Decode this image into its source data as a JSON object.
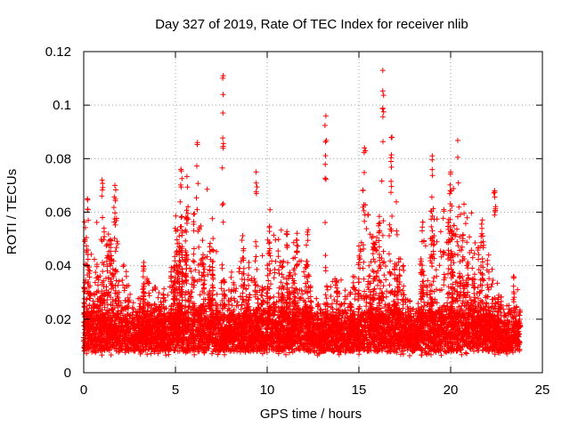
{
  "chart_data": {
    "type": "scatter",
    "title": "Day 327 of 2019, Rate Of TEC Index for receiver nlib",
    "xlabel": "GPS time / hours",
    "ylabel": "ROTI / TECUs",
    "xlim": [
      0,
      25
    ],
    "ylim": [
      0,
      0.12
    ],
    "xticks": [
      0,
      5,
      10,
      15,
      20,
      25
    ],
    "yticks": [
      0,
      0.02,
      0.04,
      0.06,
      0.08,
      0.1,
      0.12
    ],
    "xtick_labels": [
      "0",
      "5",
      "10",
      "15",
      "20",
      "25"
    ],
    "ytick_labels": [
      "0",
      "0.02",
      "0.04",
      "0.06",
      "0.08",
      "0.1",
      "0.12"
    ],
    "grid": true,
    "marker": "+",
    "color": "#ff0000",
    "series": [
      {
        "name": "ROTI",
        "note": "Dense scatter of ROTI values from 0 to ~23.8 h; bulk between 0.005 and 0.03 TECU/min with spikes",
        "peaks": [
          {
            "x": 0.2,
            "y": 0.065
          },
          {
            "x": 1.0,
            "y": 0.072
          },
          {
            "x": 1.7,
            "y": 0.07
          },
          {
            "x": 5.3,
            "y": 0.076
          },
          {
            "x": 6.2,
            "y": 0.086
          },
          {
            "x": 7.6,
            "y": 0.111
          },
          {
            "x": 9.4,
            "y": 0.075
          },
          {
            "x": 13.2,
            "y": 0.096
          },
          {
            "x": 15.3,
            "y": 0.084
          },
          {
            "x": 16.3,
            "y": 0.113
          },
          {
            "x": 16.8,
            "y": 0.088
          },
          {
            "x": 19.0,
            "y": 0.081
          },
          {
            "x": 20.0,
            "y": 0.075
          },
          {
            "x": 22.4,
            "y": 0.068
          }
        ]
      }
    ]
  }
}
